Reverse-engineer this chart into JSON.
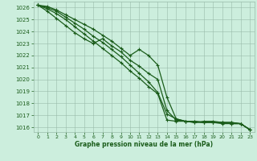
{
  "title": "Graphe pression niveau de la mer (hPa)",
  "background_color": "#cceedd",
  "grid_color": "#99bbaa",
  "line_color": "#1a5c1a",
  "xlim": [
    -0.5,
    23.5
  ],
  "ylim": [
    1015.6,
    1026.5
  ],
  "xticks": [
    0,
    1,
    2,
    3,
    4,
    5,
    6,
    7,
    8,
    9,
    10,
    11,
    12,
    13,
    14,
    15,
    16,
    17,
    18,
    19,
    20,
    21,
    22,
    23
  ],
  "yticks": [
    1016,
    1017,
    1018,
    1019,
    1020,
    1021,
    1022,
    1023,
    1024,
    1025,
    1026
  ],
  "series": [
    [
      1026.2,
      1026.1,
      1025.8,
      1025.4,
      1025.0,
      1024.6,
      1024.2,
      1023.7,
      1023.2,
      1022.6,
      1022.0,
      1022.5,
      1022.0,
      1021.2,
      1018.5,
      1016.7,
      1016.5,
      1016.4,
      1016.5,
      1016.5,
      1016.4,
      1016.4,
      1016.3,
      1015.8
    ],
    [
      1026.2,
      1026.0,
      1025.7,
      1025.2,
      1024.7,
      1024.2,
      1023.6,
      1023.1,
      1022.5,
      1021.9,
      1021.2,
      1020.5,
      1019.8,
      1018.9,
      1017.1,
      1016.7,
      1016.5,
      1016.4,
      1016.4,
      1016.4,
      1016.4,
      1016.4,
      1016.3,
      1015.8
    ],
    [
      1026.2,
      1025.9,
      1025.5,
      1025.0,
      1024.4,
      1023.8,
      1023.2,
      1022.6,
      1022.0,
      1021.4,
      1020.7,
      1020.1,
      1019.4,
      1018.8,
      1016.6,
      1016.5,
      1016.5,
      1016.5,
      1016.4,
      1016.4,
      1016.4,
      1016.3,
      1016.3,
      1015.8
    ],
    [
      1026.2,
      1025.7,
      1025.1,
      1024.5,
      1023.9,
      1023.4,
      1023.0,
      1023.4,
      1022.8,
      1022.3,
      1021.6,
      1021.1,
      1020.5,
      1020.0,
      1017.4,
      1016.6,
      1016.5,
      1016.5,
      1016.4,
      1016.4,
      1016.3,
      1016.3,
      1016.3,
      1015.8
    ]
  ],
  "figsize": [
    3.2,
    2.0
  ],
  "dpi": 100,
  "tick_fontsize": 5,
  "xlabel_fontsize": 5.5,
  "linewidth": 0.9,
  "markersize": 2.5
}
